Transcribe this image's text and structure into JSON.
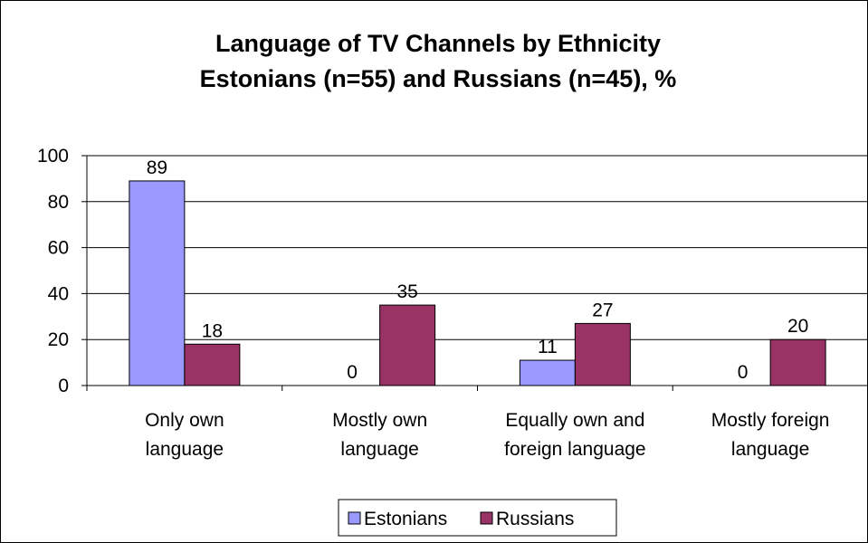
{
  "chart_data": {
    "type": "bar",
    "title": [
      "Language of TV Channels by Ethnicity",
      "Estonians (n=55) and Russians (n=45), %"
    ],
    "categories": [
      [
        "Only own",
        "language"
      ],
      [
        "Mostly own",
        "language"
      ],
      [
        "Equally own and",
        "foreign language"
      ],
      [
        "Mostly foreign",
        "language"
      ]
    ],
    "series": [
      {
        "name": "Estonians",
        "color": "#9999ff",
        "values": [
          89,
          0,
          11,
          0
        ]
      },
      {
        "name": "Russians",
        "color": "#993366",
        "values": [
          18,
          35,
          27,
          20
        ]
      }
    ],
    "ylim": [
      0,
      100
    ],
    "yticks": [
      0,
      20,
      40,
      60,
      80,
      100
    ],
    "xlabel": "",
    "ylabel": "",
    "grid": true,
    "legend_position": "bottom",
    "data_labels": true
  }
}
